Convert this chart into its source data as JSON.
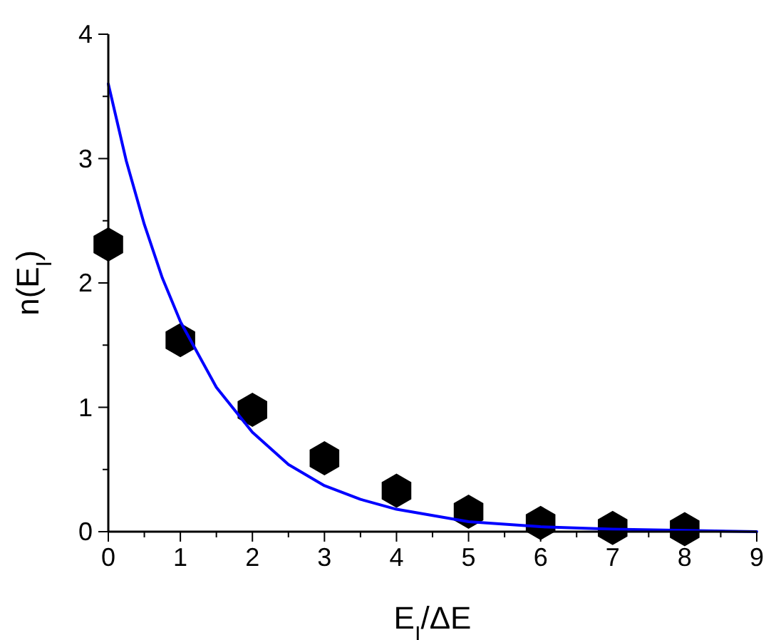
{
  "chart_data": {
    "type": "scatter",
    "xlabel": "E$_{I}$/ΔE",
    "ylabel": "n(E$_{I}$)",
    "x": [
      0,
      1,
      2,
      3,
      4,
      5,
      6,
      7,
      8
    ],
    "series": [
      {
        "type": "scatter",
        "color": "#000000",
        "values": [
          2.31,
          1.54,
          0.98,
          0.59,
          0.33,
          0.16,
          0.07,
          0.03,
          0.02
        ]
      },
      {
        "type": "line",
        "color": "#0000ff",
        "marker": "none",
        "line_style": "solid",
        "x": [
          0,
          0.25,
          0.5,
          0.75,
          1,
          1.5,
          2,
          2.5,
          3,
          3.5,
          4,
          5,
          6,
          7,
          8,
          9
        ],
        "values": [
          3.6,
          2.98,
          2.47,
          2.04,
          1.69,
          1.16,
          0.8,
          0.54,
          0.37,
          0.26,
          0.18,
          0.08,
          0.04,
          0.02,
          0.01,
          0.0
        ]
      }
    ],
    "xlim": [
      0,
      9
    ],
    "ylim": [
      0,
      4
    ],
    "xticks": [
      0,
      {
        "value": 0.5,
        "label": null
      },
      1,
      {
        "value": 1.5,
        "label": null
      },
      2,
      {
        "value": 2.5,
        "label": null
      },
      3,
      {
        "value": 3.5,
        "label": null
      },
      4,
      {
        "value": 4.5,
        "label": null
      },
      5,
      {
        "value": 5.5,
        "label": null
      },
      6,
      {
        "value": 6.5,
        "label": null
      },
      7,
      {
        "value": 7.5,
        "label": null
      },
      8,
      {
        "value": 8.5,
        "label": null
      },
      9
    ],
    "yticks": [
      0,
      {
        "value": 0.5,
        "label": null
      },
      1,
      {
        "value": 1.5,
        "label": null
      },
      2,
      {
        "value": 2.5,
        "label": null
      },
      3,
      {
        "value": 3.5,
        "label": null
      },
      4
    ],
    "grid": false
  }
}
